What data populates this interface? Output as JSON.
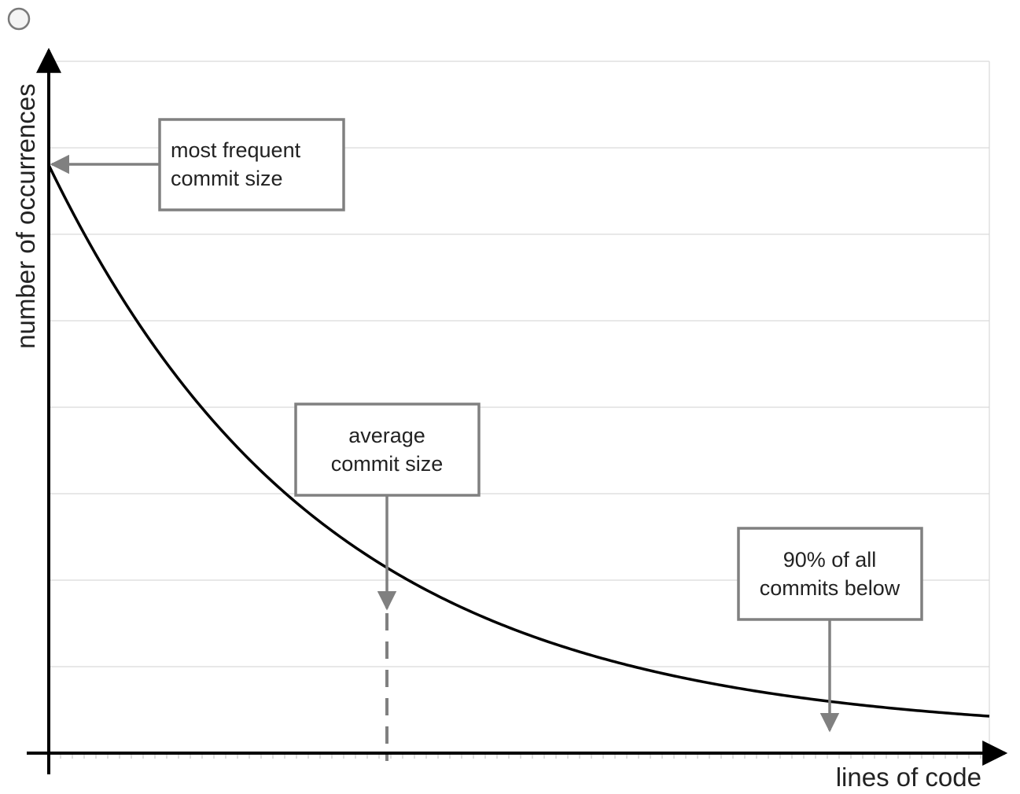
{
  "window": {
    "control_icon": "circle-radio-icon"
  },
  "axes": {
    "x_label": "lines of code",
    "y_label": "number of occurrences"
  },
  "callouts": {
    "most_frequent": {
      "line1": "most frequent",
      "line2": "commit size"
    },
    "average": {
      "line1": "average",
      "line2": "commit size"
    },
    "p90": {
      "line1": "90% of all",
      "line2": "commits below"
    }
  },
  "colors": {
    "curve": "#000000",
    "axis": "#000000",
    "grid": "#d9d9d9",
    "annotation": "#808080",
    "text": "#222222"
  },
  "chart_data": {
    "type": "line",
    "title": "",
    "xlabel": "lines of code",
    "ylabel": "number of occurrences",
    "curve_shape": "exponential decay",
    "grid": true,
    "annotations": [
      "most frequent commit size",
      "average commit size",
      "90% of all commits below"
    ]
  }
}
